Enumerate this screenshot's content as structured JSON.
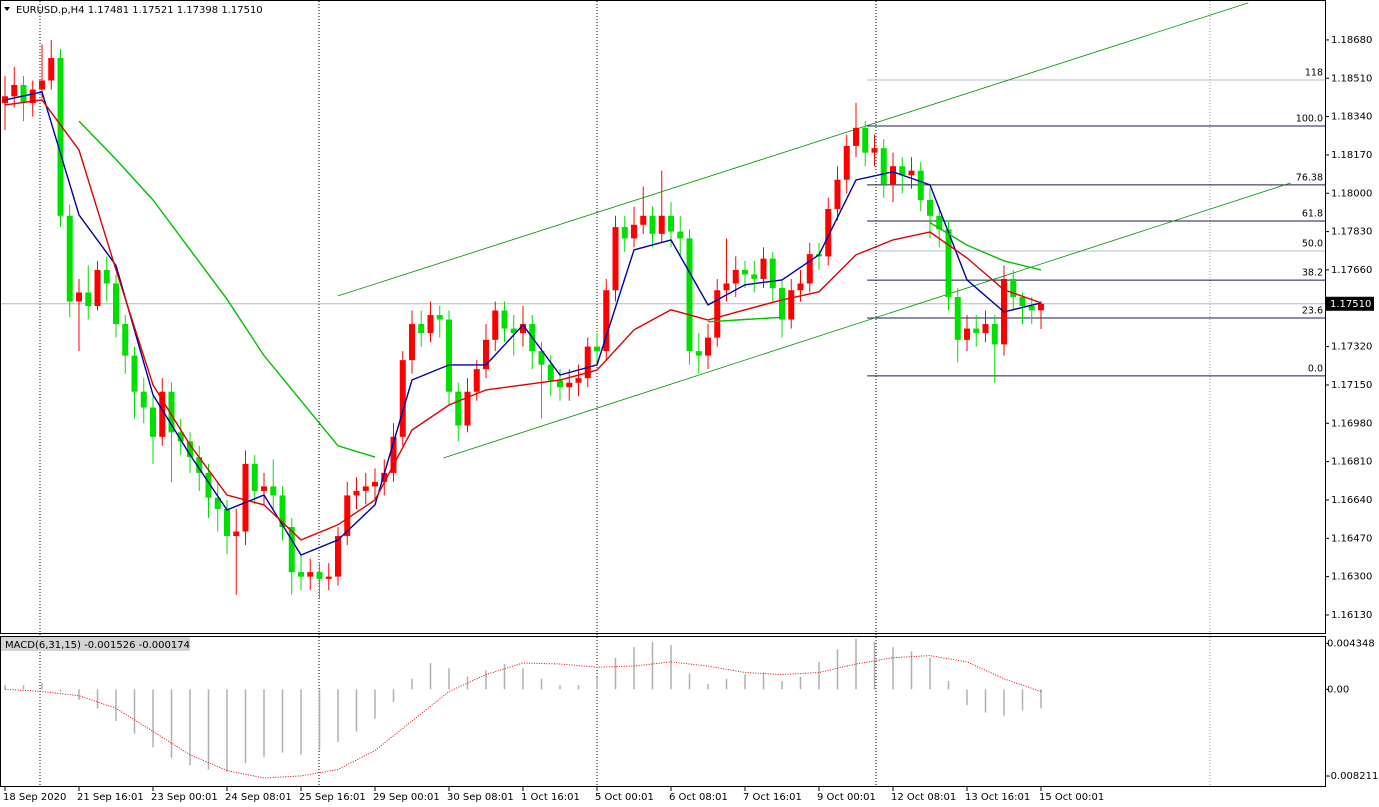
{
  "chart_data": [
    {
      "type": "candlestick",
      "title": "EURUSD.p,H4  1.17481 1.17521 1.17398 1.17510",
      "categories": [
        "18 Sep 2020",
        null,
        null,
        null,
        null,
        null,
        null,
        null,
        "21 Sep 16:01",
        null,
        null,
        null,
        null,
        null,
        null,
        null,
        "23 Sep 00:01",
        null,
        null,
        null,
        null,
        null,
        null,
        null,
        "24 Sep 08:01",
        null,
        null,
        null,
        null,
        null,
        null,
        null,
        "25 Sep 16:01",
        null,
        null,
        null,
        null,
        null,
        null,
        null,
        "29 Sep 00:01",
        null,
        null,
        null,
        null,
        null,
        null,
        null,
        "30 Sep 08:01",
        null,
        null,
        null,
        null,
        null,
        null,
        null,
        "1 Oct 16:01",
        null,
        null,
        null,
        null,
        null,
        null,
        null,
        "5 Oct 00:01",
        null,
        null,
        null,
        null,
        null,
        null,
        null,
        "6 Oct 08:01",
        null,
        null,
        null,
        null,
        null,
        null,
        null,
        "7 Oct 16:01",
        null,
        null,
        null,
        null,
        null,
        null,
        null,
        "9 Oct 00:01",
        null,
        null,
        null,
        null,
        null,
        null,
        null,
        "12 Oct 08:01",
        null,
        null,
        null,
        null,
        null,
        null,
        null,
        "13 Oct 16:01",
        null,
        null,
        null,
        null,
        null,
        null,
        null,
        "15 Oct 00:01"
      ],
      "open": [
        1.184,
        1.1843,
        1.1848,
        1.184,
        1.1846,
        1.185,
        1.186,
        1.179,
        1.1752,
        1.1756,
        1.175,
        1.1766,
        1.176,
        1.1742,
        1.1728,
        1.1712,
        1.1705,
        1.1692,
        1.1712,
        1.1694,
        1.169,
        1.1683,
        1.1676,
        1.1665,
        1.166,
        1.1648,
        1.165,
        1.168,
        1.1668,
        1.167,
        1.1666,
        1.1652,
        1.1632,
        1.163,
        1.1632,
        1.1629,
        1.163,
        1.1648,
        1.1666,
        1.1668,
        1.167,
        1.1672,
        1.1676,
        1.1692,
        1.1726,
        1.1742,
        1.1738,
        1.1746,
        1.1744,
        1.1712,
        1.1697,
        1.1712,
        1.1722,
        1.1735,
        1.1748,
        1.174,
        1.1738,
        1.1742,
        1.173,
        1.1724,
        1.1717,
        1.1714,
        1.1716,
        1.1718,
        1.1732,
        1.173,
        1.1757,
        1.1785,
        1.178,
        1.1786,
        1.179,
        1.1782,
        1.179,
        1.1783,
        1.178,
        1.173,
        1.1728,
        1.1736,
        1.1757,
        1.176,
        1.1766,
        1.1764,
        1.1762,
        1.1771,
        1.1758,
        1.1744,
        1.1757,
        1.176,
        1.1773,
        1.1772,
        1.1793,
        1.1806,
        1.1821,
        1.1829,
        1.1818,
        1.182,
        1.1804,
        1.1812,
        1.1808,
        1.181,
        1.1797,
        1.179,
        1.1784,
        1.1754,
        1.1735,
        1.174,
        1.1738,
        1.1742,
        1.1733,
        1.1762,
        1.1754,
        1.175,
        1.17481
      ],
      "high": [
        1.1852,
        1.1856,
        1.1852,
        1.185,
        1.1866,
        1.1868,
        1.1864,
        1.1795,
        1.1762,
        1.1768,
        1.177,
        1.1772,
        1.1764,
        1.1746,
        1.1732,
        1.1718,
        1.171,
        1.1718,
        1.1716,
        1.17,
        1.1694,
        1.1688,
        1.168,
        1.1672,
        1.1664,
        1.166,
        1.1686,
        1.1684,
        1.1676,
        1.1682,
        1.167,
        1.1656,
        1.164,
        1.1638,
        1.1636,
        1.1636,
        1.1652,
        1.1672,
        1.1674,
        1.1676,
        1.1678,
        1.1682,
        1.1698,
        1.173,
        1.1748,
        1.1748,
        1.1752,
        1.175,
        1.1748,
        1.1716,
        1.1718,
        1.1726,
        1.1742,
        1.1752,
        1.1752,
        1.1746,
        1.175,
        1.1746,
        1.1734,
        1.1728,
        1.1722,
        1.1722,
        1.1724,
        1.1736,
        1.1738,
        1.1762,
        1.179,
        1.179,
        1.1794,
        1.1803,
        1.1794,
        1.181,
        1.1796,
        1.179,
        1.1784,
        1.1738,
        1.1742,
        1.1762,
        1.178,
        1.1772,
        1.177,
        1.177,
        1.1776,
        1.1774,
        1.1762,
        1.1762,
        1.1766,
        1.1778,
        1.1778,
        1.1798,
        1.1812,
        1.1826,
        1.184,
        1.1832,
        1.1826,
        1.1824,
        1.1818,
        1.1816,
        1.1816,
        1.1814,
        1.1802,
        1.1794,
        1.1788,
        1.1758,
        1.1746,
        1.1746,
        1.1748,
        1.1746,
        1.1768,
        1.1766,
        1.1756,
        1.1754,
        1.17521
      ],
      "low": [
        1.1828,
        1.1838,
        1.1832,
        1.1834,
        1.1842,
        1.1846,
        1.1785,
        1.1745,
        1.173,
        1.1744,
        1.1748,
        1.1752,
        1.1736,
        1.172,
        1.17,
        1.1698,
        1.168,
        1.1688,
        1.1672,
        1.1684,
        1.1676,
        1.1668,
        1.1656,
        1.165,
        1.164,
        1.1622,
        1.1644,
        1.1662,
        1.1662,
        1.166,
        1.1646,
        1.1622,
        1.1624,
        1.1624,
        1.162,
        1.1624,
        1.1626,
        1.1644,
        1.166,
        1.1662,
        1.1664,
        1.1666,
        1.1672,
        1.1688,
        1.172,
        1.1732,
        1.1734,
        1.1736,
        1.1706,
        1.169,
        1.1694,
        1.1708,
        1.1718,
        1.173,
        1.1734,
        1.1728,
        1.1732,
        1.1722,
        1.17,
        1.171,
        1.1708,
        1.1708,
        1.171,
        1.1714,
        1.1724,
        1.1726,
        1.1752,
        1.1774,
        1.1776,
        1.1782,
        1.1776,
        1.1778,
        1.1776,
        1.1772,
        1.1724,
        1.172,
        1.1722,
        1.1732,
        1.1752,
        1.1754,
        1.1758,
        1.1756,
        1.1758,
        1.1752,
        1.1736,
        1.174,
        1.1752,
        1.1756,
        1.1766,
        1.1768,
        1.1788,
        1.18,
        1.1816,
        1.1812,
        1.1812,
        1.1798,
        1.1796,
        1.18,
        1.1802,
        1.1792,
        1.178,
        1.1776,
        1.1748,
        1.1725,
        1.173,
        1.1732,
        1.1734,
        1.1716,
        1.1728,
        1.1748,
        1.1742,
        1.1742,
        1.17398
      ],
      "close": [
        1.1843,
        1.1848,
        1.184,
        1.1846,
        1.185,
        1.186,
        1.179,
        1.1752,
        1.1756,
        1.175,
        1.1766,
        1.176,
        1.1742,
        1.1728,
        1.1712,
        1.1705,
        1.1692,
        1.1712,
        1.1694,
        1.169,
        1.1683,
        1.1676,
        1.1665,
        1.166,
        1.1648,
        1.165,
        1.168,
        1.1668,
        1.167,
        1.1666,
        1.1652,
        1.1632,
        1.163,
        1.1632,
        1.1629,
        1.163,
        1.1648,
        1.1666,
        1.1668,
        1.167,
        1.1672,
        1.1676,
        1.1692,
        1.1726,
        1.1742,
        1.1738,
        1.1746,
        1.1744,
        1.1712,
        1.1697,
        1.1712,
        1.1722,
        1.1735,
        1.1748,
        1.174,
        1.1738,
        1.1742,
        1.173,
        1.1724,
        1.1717,
        1.1714,
        1.1716,
        1.1718,
        1.1732,
        1.173,
        1.1757,
        1.1785,
        1.178,
        1.1786,
        1.179,
        1.1782,
        1.179,
        1.1783,
        1.178,
        1.173,
        1.1728,
        1.1736,
        1.1757,
        1.176,
        1.1766,
        1.1764,
        1.1762,
        1.1771,
        1.1758,
        1.1744,
        1.1757,
        1.176,
        1.1773,
        1.1772,
        1.1793,
        1.1806,
        1.1821,
        1.1829,
        1.1818,
        1.182,
        1.1804,
        1.1812,
        1.1808,
        1.181,
        1.1797,
        1.179,
        1.1784,
        1.1754,
        1.1735,
        1.174,
        1.1738,
        1.1742,
        1.1733,
        1.1762,
        1.1754,
        1.175,
        1.17481,
        1.1751
      ],
      "up_color": "#ff0000",
      "down_color": "#00e000",
      "ylim": [
        1.1605,
        1.18857
      ],
      "yticks": [
        {
          "value": 1.1868,
          "label": "1.18680"
        },
        {
          "value": 1.1851,
          "label": "1.18510"
        },
        {
          "value": 1.1834,
          "label": "1.18340"
        },
        {
          "value": 1.1817,
          "label": "1.18170"
        },
        {
          "value": 1.18,
          "label": "1.18000"
        },
        {
          "value": 1.1783,
          "label": "1.17830"
        },
        {
          "value": 1.1766,
          "label": "1.17660"
        },
        {
          "value": 1.1732,
          "label": "1.17320"
        },
        {
          "value": 1.1715,
          "label": "1.17150"
        },
        {
          "value": 1.1698,
          "label": "1.16980"
        },
        {
          "value": 1.1681,
          "label": "1.16810"
        },
        {
          "value": 1.1664,
          "label": "1.16640"
        },
        {
          "value": 1.1647,
          "label": "1.16470"
        },
        {
          "value": 1.163,
          "label": "1.16300"
        },
        {
          "value": 1.1613,
          "label": "1.16130"
        }
      ],
      "current_price": {
        "value": 1.1751,
        "label": "1.17510"
      },
      "overlays": [
        {
          "color": "#0000a8",
          "x": [
            0,
            4,
            8,
            12,
            16,
            20,
            24,
            28,
            32,
            36,
            40,
            44,
            48,
            52,
            56,
            60,
            64,
            68,
            72,
            76,
            80,
            84,
            88,
            92,
            96,
            100,
            104,
            108,
            112
          ],
          "values": [
            1.18414,
            1.18449,
            1.17904,
            1.1768,
            1.17106,
            1.1684,
            1.16596,
            1.16662,
            1.16396,
            1.16463,
            1.16618,
            1.17172,
            1.17239,
            1.17239,
            1.17416,
            1.17194,
            1.17239,
            1.17749,
            1.17793,
            1.17505,
            1.17594,
            1.17616,
            1.17727,
            1.18059,
            1.18095,
            1.18037,
            1.17616,
            1.17474,
            1.17514
          ]
        },
        {
          "color": "#e00000",
          "x": [
            0,
            4,
            8,
            12,
            16,
            20,
            24,
            28,
            32,
            36,
            40,
            44,
            48,
            52,
            56,
            60,
            64,
            68,
            72,
            76,
            80,
            84,
            88,
            92,
            96,
            100,
            104,
            108,
            112
          ],
          "values": [
            1.18392,
            1.18414,
            1.18192,
            1.1766,
            1.1715,
            1.16884,
            1.16662,
            1.16618,
            1.16463,
            1.1653,
            1.1664,
            1.1695,
            1.17061,
            1.17128,
            1.1715,
            1.17172,
            1.17216,
            1.17394,
            1.17483,
            1.17438,
            1.17483,
            1.17527,
            1.17563,
            1.17727,
            1.17793,
            1.17828,
            1.17713,
            1.17572,
            1.17514
          ]
        },
        {
          "color": "#00c000",
          "x": [
            0,
            4,
            8,
            12,
            16,
            20,
            24,
            28,
            32,
            36,
            40,
            44,
            48,
            52,
            56,
            60,
            64,
            68,
            72,
            76,
            80,
            84,
            88,
            92,
            96,
            100,
            104,
            108,
            112
          ],
          "values": [
            null,
            null,
            1.1832,
            1.1815,
            1.1797,
            1.1775,
            1.1753,
            1.1728,
            1.1708,
            1.1688,
            1.1683,
            null,
            null,
            null,
            null,
            null,
            null,
            null,
            null,
            1.1743,
            1.1744,
            1.1745,
            null,
            null,
            null,
            1.1787,
            1.1777,
            1.177,
            1.1766
          ]
        }
      ],
      "fibonacci": [
        {
          "label": "118",
          "value": 1.18502,
          "color": "#b4bccc"
        },
        {
          "label": "100.0",
          "value": 1.18298,
          "color": "#1c1c4c"
        },
        {
          "label": "76.38",
          "value": 1.18037,
          "color": "#1c1c4c"
        },
        {
          "label": "61.8",
          "value": 1.17877,
          "color": "#1c1c4c"
        },
        {
          "label": "50.0",
          "value": 1.17744,
          "color": "#b4bccc"
        },
        {
          "label": "38.2",
          "value": 1.17615,
          "color": "#1c1c4c"
        },
        {
          "label": "23.6",
          "value": 1.17447,
          "color": "#1c1c4c"
        },
        {
          "label": "0.0",
          "value": 1.1719,
          "color": "#1c1c4c"
        }
      ],
      "channel": {
        "color": "#009000",
        "lines": [
          {
            "x": [
              36,
              134.4
            ],
            "y": [
              1.17545,
              1.18844
            ]
          },
          {
            "x": [
              47.4,
              139
            ],
            "y": [
              1.16826,
              1.18046
            ]
          }
        ]
      }
    },
    {
      "type": "macd",
      "title": "MACD(6,31,15) -0.001526 -0.000174",
      "histogram": {
        "color": "#b0b0b0",
        "x": [
          0,
          2,
          4,
          6,
          8,
          10,
          12,
          14,
          16,
          18,
          20,
          22,
          24,
          26,
          28,
          30,
          32,
          34,
          36,
          38,
          40,
          42,
          44,
          46,
          48,
          50,
          52,
          54,
          56,
          58,
          60,
          62,
          64,
          66,
          68,
          70,
          72,
          74,
          76,
          78,
          80,
          82,
          84,
          86,
          88,
          90,
          92,
          94,
          96,
          98,
          100,
          102,
          104,
          106,
          108,
          110,
          112
        ],
        "values": [
          0.0004,
          0.0004,
          0.0006,
          -0.0002,
          -0.001,
          -0.0018,
          -0.003,
          -0.0042,
          -0.0055,
          -0.0065,
          -0.0072,
          -0.0076,
          -0.0078,
          -0.007,
          -0.0064,
          -0.006,
          -0.0062,
          -0.0058,
          -0.005,
          -0.004,
          -0.0028,
          -0.0012,
          0.001,
          0.0025,
          0.002,
          0.0012,
          0.0018,
          0.0024,
          0.002,
          0.001,
          0.0004,
          0.0004,
          0.0012,
          0.003,
          0.004,
          0.0045,
          0.0042,
          0.0015,
          0.0005,
          0.001,
          0.0014,
          0.0016,
          0.0008,
          0.0012,
          0.0026,
          0.0038,
          0.0048,
          0.0045,
          0.004,
          0.0036,
          0.003,
          0.0008,
          -0.0015,
          -0.0022,
          -0.0025,
          -0.002,
          -0.0018
        ]
      },
      "signal": {
        "color": "#e00000",
        "x": [
          0,
          4,
          8,
          12,
          16,
          20,
          24,
          28,
          32,
          36,
          40,
          44,
          48,
          52,
          56,
          60,
          64,
          68,
          72,
          76,
          80,
          84,
          88,
          92,
          96,
          100,
          104,
          108,
          112
        ],
        "values": [
          0,
          -0.0002,
          -0.0006,
          -0.0018,
          -0.004,
          -0.0062,
          -0.0077,
          -0.0084,
          -0.0082,
          -0.0076,
          -0.0058,
          -0.003,
          -0.0002,
          0.0014,
          0.0025,
          0.0024,
          0.0021,
          0.0022,
          0.0026,
          0.0022,
          0.0016,
          0.0014,
          0.0016,
          0.0024,
          0.003,
          0.0032,
          0.0026,
          0.001,
          -0.0002
        ]
      },
      "ylim": [
        -0.00916,
        0.00496
      ],
      "yticks": [
        0.004348,
        {
          "value": 0,
          "label": "0.00"
        },
        -0.008211
      ]
    }
  ]
}
